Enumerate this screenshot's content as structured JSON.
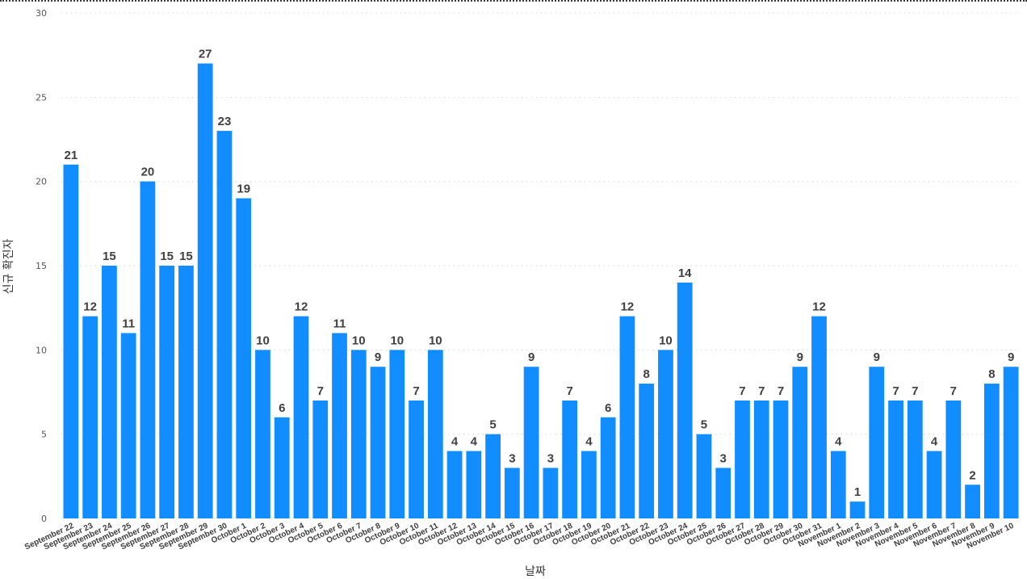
{
  "chart_data": {
    "type": "bar",
    "title": "",
    "xlabel": "날짜",
    "ylabel": "신규 확진자",
    "ylim": [
      0,
      30
    ],
    "yticks": [
      0,
      5,
      10,
      15,
      20,
      25,
      30
    ],
    "grid": true,
    "bar_color": "#118DFF",
    "categories": [
      "September 22",
      "September 23",
      "September 24",
      "September 25",
      "September 26",
      "September 27",
      "September 28",
      "September 29",
      "September 30",
      "October 1",
      "October 2",
      "October 3",
      "October 4",
      "October 5",
      "October 6",
      "October 7",
      "October 8",
      "October 9",
      "October 10",
      "October 11",
      "October 12",
      "October 13",
      "October 14",
      "October 15",
      "October 16",
      "October 17",
      "October 18",
      "October 19",
      "October 20",
      "October 21",
      "October 22",
      "October 23",
      "October 24",
      "October 25",
      "October 26",
      "October 27",
      "October 28",
      "October 29",
      "October 30",
      "October 31",
      "November 1",
      "November 2",
      "November 3",
      "November 4",
      "November 5",
      "November 6",
      "November 7",
      "November 8",
      "November 9",
      "November 10"
    ],
    "values": [
      21,
      12,
      15,
      11,
      20,
      15,
      15,
      27,
      23,
      19,
      10,
      6,
      12,
      7,
      11,
      10,
      9,
      10,
      7,
      10,
      4,
      4,
      5,
      3,
      9,
      3,
      7,
      4,
      6,
      12,
      8,
      10,
      14,
      5,
      3,
      7,
      7,
      7,
      9,
      12,
      4,
      1,
      9,
      7,
      7,
      4,
      7,
      2,
      8,
      9
    ]
  }
}
